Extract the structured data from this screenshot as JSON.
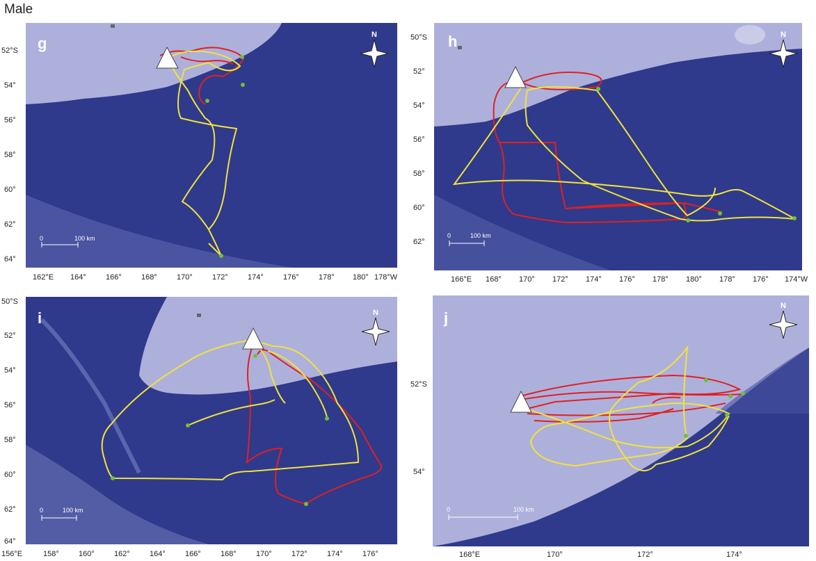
{
  "figure": {
    "title": "Male"
  },
  "colors": {
    "ocean": "#2f3a8c",
    "shelf": "#aeb0dc",
    "track_a": "#e02020",
    "track_b": "#f2e33a",
    "end_point": "#6fbf3c",
    "colony_marker": "#ffffff"
  },
  "panels": [
    {
      "id": "g",
      "letter": "g",
      "compass_label": "N",
      "scale": {
        "start_label": "0",
        "end_label": "100 km"
      },
      "x_ticks": [
        "162°E",
        "164°",
        "166°",
        "168°",
        "170°",
        "172°",
        "174°",
        "176°",
        "178°",
        "180°",
        "178°W"
      ],
      "y_ticks": [
        "52°S",
        "54°",
        "56°",
        "58°",
        "60°",
        "62°",
        "64°"
      ]
    },
    {
      "id": "h",
      "letter": "h",
      "compass_label": "N",
      "scale": {
        "start_label": "0",
        "end_label": "100 km"
      },
      "x_ticks": [
        "166°E",
        "168°",
        "170°",
        "172°",
        "174°",
        "176°",
        "178°",
        "180°",
        "178°",
        "176°",
        "174°W"
      ],
      "y_ticks": [
        "50°S",
        "52°",
        "54°",
        "56°",
        "58°",
        "60°",
        "62°"
      ]
    },
    {
      "id": "i",
      "letter": "i",
      "compass_label": "N",
      "scale": {
        "start_label": "0",
        "end_label": "100 km"
      },
      "x_ticks": [
        "156°E",
        "158°",
        "160°",
        "162°",
        "164°",
        "166°",
        "168°",
        "170°",
        "172°",
        "174°",
        "176°"
      ],
      "y_ticks": [
        "50°S",
        "52°",
        "54°",
        "56°",
        "58°",
        "60°",
        "62°",
        "64°"
      ]
    },
    {
      "id": "j",
      "letter": "j",
      "compass_label": "N",
      "scale": {
        "start_label": "0",
        "end_label": "100 km"
      },
      "x_ticks": [
        "168°E",
        "170°",
        "172°",
        "174°"
      ],
      "y_ticks": [
        "52°S",
        "54°"
      ]
    }
  ]
}
